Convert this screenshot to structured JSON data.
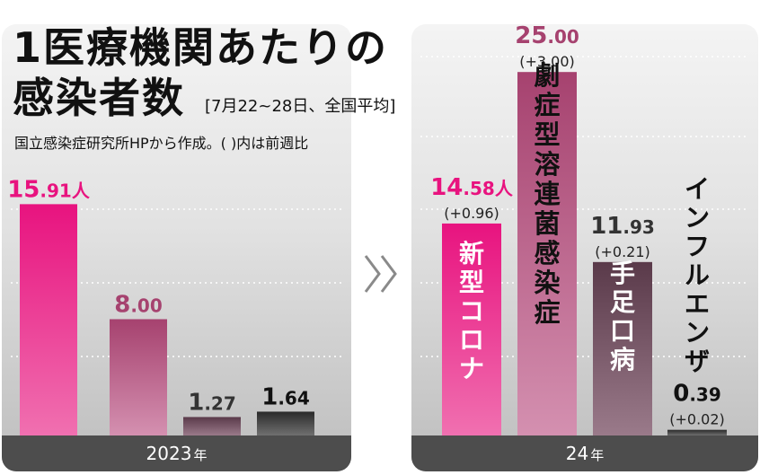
{
  "title_line1": "1医療機関あたりの",
  "title_line2": "感染者数",
  "subtitle": "[7月22~28日、全国平均]",
  "source_note": "国立感染症研究所HPから作成。(  )内は前週比",
  "panels": [
    {
      "footer_year": "2023",
      "footer_unit": "年"
    },
    {
      "footer_year": "24",
      "footer_unit": "年"
    }
  ],
  "colors": {
    "covid": "#e8137f",
    "strep": "#a6426f",
    "hfmd": "#5a3a4a",
    "flu": "#2a2a2a",
    "accent_text_covid": "#e8137f",
    "accent_text_strep": "#a6426f",
    "footer": "#4d4d4d"
  },
  "chart_data": [
    {
      "type": "bar",
      "title": "2023年",
      "categories": [
        "新型コロナ",
        "劇症型溶連菌感染症",
        "手足口病",
        "インフルエンザ"
      ],
      "values": [
        15.91,
        8.0,
        1.27,
        1.64
      ],
      "value_labels": [
        "15.91人",
        "8.00",
        "1.27",
        "1.64"
      ],
      "change_labels": [
        "",
        "",
        "",
        ""
      ],
      "ylim": [
        0,
        26
      ]
    },
    {
      "type": "bar",
      "title": "24年",
      "categories": [
        "新型コロナ",
        "劇症型溶連菌感染症",
        "手足口病",
        "インフルエンザ"
      ],
      "values": [
        14.58,
        25.0,
        11.93,
        0.39
      ],
      "value_labels": [
        "14.58人",
        "25.00",
        "11.93",
        "0.39"
      ],
      "change_labels": [
        "(+0.96)",
        "(+3.00)",
        "(+0.21)",
        "(+0.02)"
      ],
      "ylim": [
        0,
        26
      ]
    }
  ]
}
